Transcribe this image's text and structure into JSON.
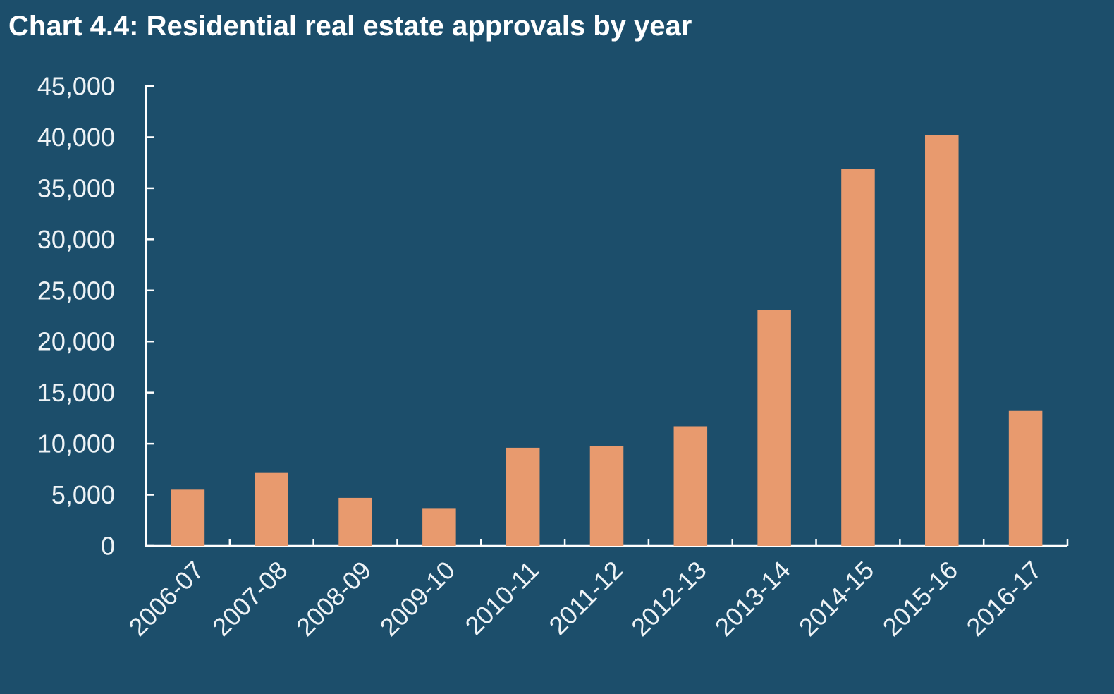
{
  "chart_data": {
    "type": "bar",
    "title": "Chart 4.4: Residential real estate approvals by year",
    "xlabel": "",
    "ylabel": "",
    "ylim": [
      0,
      45000
    ],
    "yticks": [
      0,
      5000,
      10000,
      15000,
      20000,
      25000,
      30000,
      35000,
      40000,
      45000
    ],
    "ytick_labels": [
      "0",
      "5,000",
      "10,000",
      "15,000",
      "20,000",
      "25,000",
      "30,000",
      "35,000",
      "40,000",
      "45,000"
    ],
    "categories": [
      "2006-07",
      "2007-08",
      "2008-09",
      "2009-10",
      "2010-11",
      "2011-12",
      "2012-13",
      "2013-14",
      "2014-15",
      "2015-16",
      "2016-17"
    ],
    "values": [
      5500,
      7200,
      4700,
      3700,
      9600,
      9800,
      11700,
      23100,
      36900,
      40200,
      13200
    ],
    "grid": false,
    "legend": "none",
    "colors": {
      "background": "#1c4e6b",
      "bar": "#e89a6e",
      "axis": "#ffffff",
      "text": "#eef3f6"
    }
  }
}
